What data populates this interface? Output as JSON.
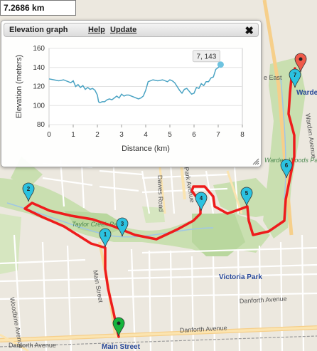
{
  "distance_label": "7.2686 km",
  "elevation_panel": {
    "title": "Elevation graph",
    "help_label": "Help",
    "update_label": "Update",
    "close_glyph": "✖"
  },
  "chart_data": {
    "type": "line",
    "xlabel": "Distance (km)",
    "ylabel": "Elevation (meters)",
    "xlim": [
      0,
      8
    ],
    "ylim": [
      80,
      160
    ],
    "x_ticks": [
      0,
      1,
      2,
      3,
      4,
      5,
      6,
      7,
      8
    ],
    "y_ticks": [
      80,
      100,
      120,
      140,
      160
    ],
    "grid": true,
    "tooltip": "7, 143",
    "series": [
      {
        "color": "#4aa3c3",
        "x": [
          0,
          0.2,
          0.4,
          0.6,
          0.8,
          0.9,
          1.0,
          1.1,
          1.2,
          1.3,
          1.4,
          1.5,
          1.6,
          1.7,
          1.8,
          1.9,
          2.0,
          2.05,
          2.1,
          2.2,
          2.3,
          2.4,
          2.5,
          2.6,
          2.7,
          2.8,
          2.9,
          3.0,
          3.1,
          3.2,
          3.3,
          3.5,
          3.7,
          3.8,
          3.9,
          4.0,
          4.1,
          4.3,
          4.5,
          4.7,
          4.9,
          5.0,
          5.1,
          5.2,
          5.3,
          5.4,
          5.5,
          5.6,
          5.7,
          5.8,
          5.9,
          6.0,
          6.1,
          6.2,
          6.3,
          6.4,
          6.5,
          6.6,
          6.7,
          6.8,
          6.9,
          7.0,
          7.1
        ],
        "y": [
          128,
          127,
          126,
          127,
          125,
          124,
          126,
          120,
          122,
          119,
          121,
          117,
          119,
          117,
          118,
          116,
          111,
          104,
          103,
          104,
          104,
          106,
          107,
          106,
          108,
          110,
          108,
          112,
          110,
          111,
          111,
          109,
          107,
          108,
          110,
          116,
          125,
          127,
          126,
          127,
          125,
          127,
          126,
          124,
          120,
          116,
          113,
          117,
          118,
          115,
          112,
          113,
          119,
          118,
          123,
          121,
          125,
          125,
          129,
          130,
          138,
          140,
          143
        ]
      }
    ]
  },
  "map": {
    "labels": {
      "taylor_creek_park": "Taylor Creek Park",
      "main_street": "Main Street",
      "dawes_road": "Dawes Road",
      "park_avenue": "Park Avenue",
      "warden_woods_park": "Warden Woods Park",
      "victoria_park": "Victoria Park",
      "danforth_avenue_1": "Danforth Avenue",
      "danforth_avenue_2": "Danforth Avenue",
      "danforth_avenue_3": "Danforth Avenue",
      "woodbine_avenue": "Woodbine Avenue",
      "warden_avenue": "Warden Avenue",
      "warden_station": "Warden",
      "main_street_station": "Main Street",
      "east_street": "e East"
    },
    "markers": [
      {
        "id": "start",
        "label": "",
        "color": "#16b43c"
      },
      {
        "id": "m1",
        "label": "1",
        "color": "#2bc2e0"
      },
      {
        "id": "m2",
        "label": "2",
        "color": "#2bc2e0"
      },
      {
        "id": "m3",
        "label": "3",
        "color": "#2bc2e0"
      },
      {
        "id": "m4",
        "label": "4",
        "color": "#2bc2e0"
      },
      {
        "id": "m5",
        "label": "5",
        "color": "#2bc2e0"
      },
      {
        "id": "m6",
        "label": "6",
        "color": "#2bc2e0"
      },
      {
        "id": "m7",
        "label": "7",
        "color": "#2bc2e0"
      },
      {
        "id": "end",
        "label": "",
        "color": "#ef5a4a"
      }
    ],
    "route_color": "#ee1c1c"
  }
}
